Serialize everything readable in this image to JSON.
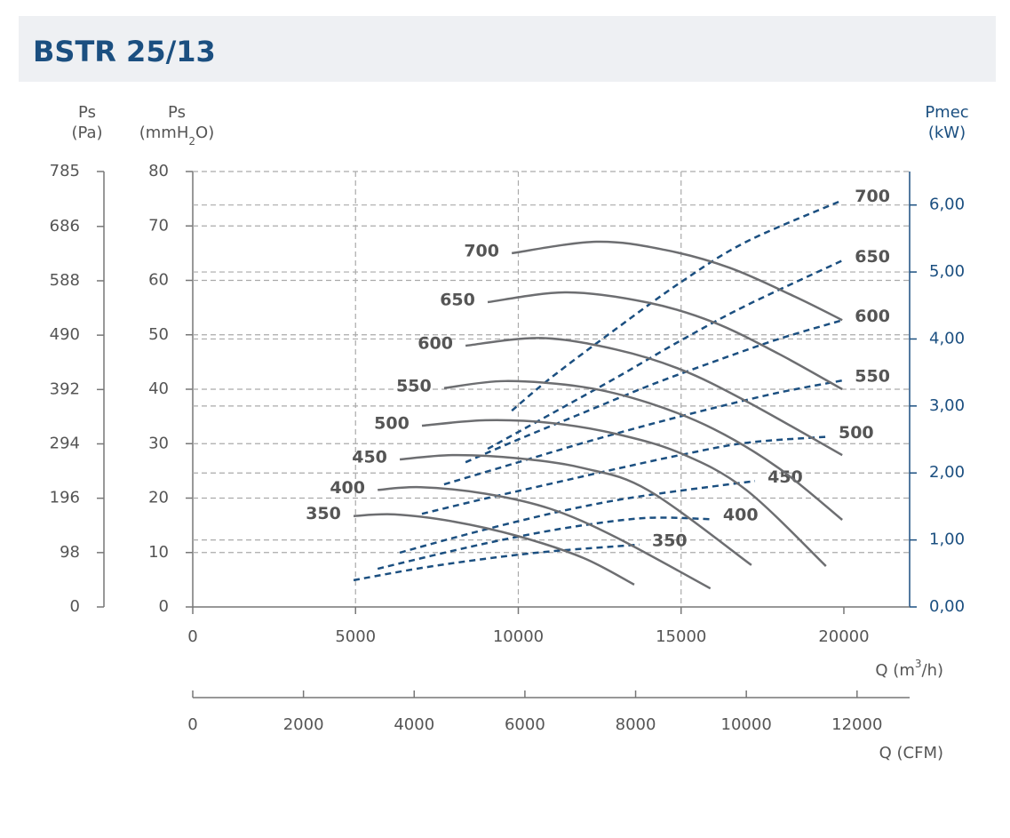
{
  "chart_data": {
    "type": "fan-curve",
    "title": "BSTR 25/13",
    "y_pa_label": {
      "name": "Ps",
      "unit": "(Pa)"
    },
    "y_label": {
      "name": "Ps",
      "unit": [
        "(mmH",
        "2",
        "O)"
      ]
    },
    "y2_label": {
      "name": "Pmec",
      "unit": "(kW)"
    },
    "x_label": [
      "Q (m",
      "3",
      "/h)"
    ],
    "x_cfm_label": "Q (CFM)",
    "xlim": [
      0,
      22020
    ],
    "xticks": [
      0,
      5000,
      10000,
      15000,
      20000
    ],
    "x_cfm_lim": [
      0,
      12950
    ],
    "x_cfm_ticks": [
      0,
      2000,
      4000,
      6000,
      8000,
      10000,
      12000
    ],
    "ylim": [
      0,
      80
    ],
    "yticks": [
      0,
      10,
      20,
      30,
      40,
      50,
      60,
      70,
      80
    ],
    "y_pa_lim": [
      0,
      785
    ],
    "y_pa_ticks": [
      0,
      98,
      196,
      294,
      392,
      490,
      588,
      686,
      785
    ],
    "y2lim": [
      0,
      6.5
    ],
    "y2ticks": [
      {
        "value": 0,
        "label": "0,00"
      },
      {
        "value": 1,
        "label": "1,00"
      },
      {
        "value": 2,
        "label": "2,00"
      },
      {
        "value": 3,
        "label": "3,00"
      },
      {
        "value": 4,
        "label": "4,00"
      },
      {
        "value": 5,
        "label": "5,00"
      },
      {
        "value": 6,
        "label": "6,00"
      }
    ],
    "grid": true,
    "pressure_color": "#6d6e71",
    "power_color": "#1b4f80",
    "pressure_series": [
      {
        "name": "350",
        "x": [
          4940,
          6200,
          8000,
          10000,
          12000,
          13560
        ],
        "values": [
          16.7,
          17.0,
          15.7,
          13.0,
          9.0,
          4.1
        ]
      },
      {
        "name": "400",
        "x": [
          5680,
          7000,
          9000,
          11000,
          13000,
          15900
        ],
        "values": [
          21.5,
          22.0,
          20.8,
          18.0,
          12.8,
          3.4
        ]
      },
      {
        "name": "450",
        "x": [
          6360,
          8000,
          10000,
          12000,
          14000,
          17160
        ],
        "values": [
          27.1,
          27.9,
          27.3,
          25.5,
          21.4,
          7.7
        ]
      },
      {
        "name": "500",
        "x": [
          7040,
          9000,
          11000,
          13000,
          15000,
          17000,
          19450
        ],
        "values": [
          33.3,
          34.3,
          33.8,
          31.8,
          28.2,
          21.5,
          7.5
        ]
      },
      {
        "name": "550",
        "x": [
          7720,
          9600,
          12000,
          14000,
          16000,
          18000,
          19950
        ],
        "values": [
          40.2,
          41.5,
          40.4,
          37.5,
          32.7,
          25.5,
          16.0
        ]
      },
      {
        "name": "600",
        "x": [
          8380,
          10700,
          13000,
          15000,
          17000,
          19950
        ],
        "values": [
          48.0,
          49.4,
          47.3,
          43.6,
          37.8,
          27.9
        ]
      },
      {
        "name": "650",
        "x": [
          9060,
          11500,
          14000,
          16000,
          18000,
          19950
        ],
        "values": [
          56.0,
          57.8,
          55.9,
          52.3,
          46.5,
          40.0
        ]
      },
      {
        "name": "700",
        "x": [
          9800,
          12400,
          14500,
          16500,
          18500,
          19950
        ],
        "values": [
          65.0,
          67.1,
          65.6,
          62.3,
          57.0,
          52.7
        ]
      }
    ],
    "power_series": [
      {
        "name": "350",
        "x": [
          4940,
          7000,
          9000,
          11000,
          13720
        ],
        "values": [
          0.4,
          0.58,
          0.72,
          0.83,
          0.93
        ]
      },
      {
        "name": "400",
        "x": [
          5680,
          8000,
          10000,
          12000,
          14000,
          15900
        ],
        "values": [
          0.57,
          0.84,
          1.05,
          1.22,
          1.33,
          1.31
        ]
      },
      {
        "name": "450",
        "x": [
          6360,
          8000,
          10000,
          12000,
          14000,
          17270
        ],
        "values": [
          0.81,
          1.03,
          1.28,
          1.5,
          1.67,
          1.88
        ]
      },
      {
        "name": "500",
        "x": [
          7040,
          9000,
          11000,
          13000,
          15000,
          17000,
          19450
        ],
        "values": [
          1.39,
          1.62,
          1.84,
          2.06,
          2.27,
          2.45,
          2.54
        ]
      },
      {
        "name": "550",
        "x": [
          7720,
          10000,
          12000,
          14000,
          16000,
          18000,
          19950
        ],
        "values": [
          1.83,
          2.16,
          2.45,
          2.72,
          2.97,
          3.2,
          3.38
        ]
      },
      {
        "name": "600",
        "x": [
          8380,
          10000,
          12000,
          14000,
          16000,
          18000,
          19950
        ],
        "values": [
          2.16,
          2.5,
          2.9,
          3.3,
          3.66,
          4.0,
          4.28
        ]
      },
      {
        "name": "650",
        "x": [
          9060,
          11000,
          13000,
          15000,
          17000,
          19950
        ],
        "values": [
          2.36,
          2.88,
          3.42,
          3.98,
          4.5,
          5.17
        ]
      },
      {
        "name": "700",
        "x": [
          9800,
          11000,
          13000,
          15000,
          17000,
          19950
        ],
        "values": [
          2.93,
          3.42,
          4.15,
          4.85,
          5.45,
          6.07
        ]
      }
    ]
  }
}
